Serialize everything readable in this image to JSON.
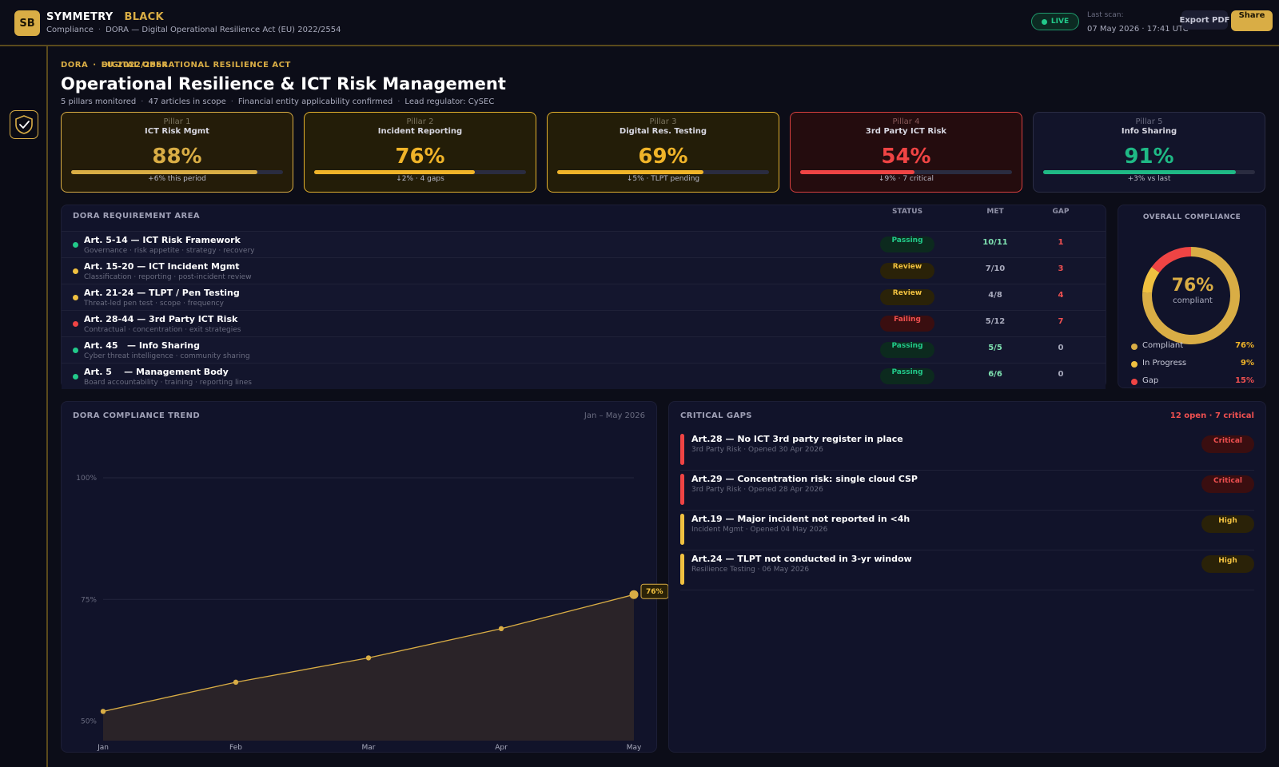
{
  "brand": {
    "initials": "SB",
    "name_primary": "SYMMETRY",
    "name_secondary": "BLACK"
  },
  "breadcrumb": {
    "section": "Compliance",
    "page": "DORA — Digital Operational Resilience Act (EU) 2022/2554"
  },
  "status": {
    "live_label": "LIVE",
    "last_scan_label": "Last scan:",
    "last_scan_value": "07 May 2026  ·  17:41 UTC"
  },
  "actions": {
    "export_label": "Export PDF",
    "share_label": "Share"
  },
  "page": {
    "eyebrow_left": "DORA",
    "eyebrow_right": "DIGITAL OPERATIONAL RESILIENCE ACT",
    "eyebrow_overlay": "EU 2022/2554",
    "title": "Operational Resilience & ICT Risk Management",
    "meta": [
      "5 pillars monitored",
      "47 articles in scope",
      "Financial entity applicability confirmed",
      "Lead regulator: CySEC"
    ]
  },
  "pillars": [
    {
      "number": "Pillar 1",
      "name": "ICT Risk Mgmt",
      "value": "88%",
      "progress": 0.88,
      "delta": "+6% this period",
      "color": "#d9ad45",
      "state": "gold"
    },
    {
      "number": "Pillar 2",
      "name": "Incident Reporting",
      "value": "76%",
      "progress": 0.76,
      "delta": "↓2%  ·  4 gaps",
      "color": "#f0b429",
      "state": "warn"
    },
    {
      "number": "Pillar 3",
      "name": "Digital Res. Testing",
      "value": "69%",
      "progress": 0.69,
      "delta": "↓5%  ·  TLPT pending",
      "color": "#f0b429",
      "state": "warn"
    },
    {
      "number": "Pillar 4",
      "name": "3rd Party ICT Risk",
      "value": "54%",
      "progress": 0.54,
      "delta": "↓9%  ·  7 critical",
      "color": "#ef4444",
      "state": "danger"
    },
    {
      "number": "Pillar 5",
      "name": "Info Sharing",
      "value": "91%",
      "progress": 0.91,
      "delta": "+3% vs last",
      "color": "#1fb985",
      "state": "ok"
    }
  ],
  "requirements": {
    "header": "DORA REQUIREMENT AREA",
    "col_status": "STATUS",
    "col_met": "MET",
    "col_gap": "GAP",
    "rows": [
      {
        "title": "Art. 5-14 — ICT Risk Framework",
        "desc": "Governance · risk appetite · strategy · recovery",
        "status": "Passing",
        "kind": "pass",
        "met": "10/11",
        "gap": "1",
        "dot": "#22c98a"
      },
      {
        "title": "Art. 15-20 — ICT Incident Mgmt",
        "desc": "Classification · reporting · post-incident review",
        "status": "Review",
        "kind": "review",
        "met": "7/10",
        "gap": "3",
        "dot": "#f0c040"
      },
      {
        "title": "Art. 21-24 — TLPT / Pen Testing",
        "desc": "Threat-led pen test · scope · frequency",
        "status": "Review",
        "kind": "review",
        "met": "4/8",
        "gap": "4",
        "dot": "#f0c040"
      },
      {
        "title": "Art. 28-44 — 3rd Party ICT Risk",
        "desc": "Contractual · concentration · exit strategies",
        "status": "Failing",
        "kind": "fail",
        "met": "5/12",
        "gap": "7",
        "dot": "#ef4444"
      },
      {
        "title": "Art. 45   — Info Sharing",
        "desc": "Cyber threat intelligence · community sharing",
        "status": "Passing",
        "kind": "pass",
        "met": "5/5",
        "gap": "0",
        "dot": "#22c98a"
      },
      {
        "title": "Art. 5    — Management Body",
        "desc": "Board accountability · training · reporting lines",
        "status": "Passing",
        "kind": "pass",
        "met": "6/6",
        "gap": "0",
        "dot": "#22c98a"
      }
    ]
  },
  "overall": {
    "header": "OVERALL COMPLIANCE",
    "value": "76%",
    "label": "compliant",
    "legend": [
      {
        "label": "Compliant",
        "value": "76%",
        "pct": 76,
        "color": "#d9ad45"
      },
      {
        "label": "In Progress",
        "value": "9%",
        "pct": 9,
        "color": "#f0c040"
      },
      {
        "label": "Gap",
        "value": "15%",
        "pct": 15,
        "color": "#ef4444"
      }
    ]
  },
  "trend": {
    "header": "DORA COMPLIANCE TREND",
    "range": "Jan – May 2026",
    "end_label": "76%"
  },
  "chart_data": {
    "type": "area",
    "title": "DORA COMPLIANCE TREND",
    "x": [
      "Jan",
      "Feb",
      "Mar",
      "Apr",
      "May"
    ],
    "values": [
      52,
      58,
      63,
      69,
      76
    ],
    "ylim": [
      46,
      110
    ],
    "yticks": [
      50,
      75,
      100
    ],
    "ytick_labels": [
      "50%",
      "75%",
      "100%"
    ],
    "grid": true,
    "color": "#d9ad45"
  },
  "critical_gaps": {
    "header": "CRITICAL GAPS",
    "count": "12 open · 7 critical",
    "items": [
      {
        "title": "Art.28 — No ICT 3rd party register in place",
        "meta": "3rd Party Risk · Opened 30 Apr 2026",
        "severity": "Critical",
        "kind": "crit",
        "color": "#ef4444"
      },
      {
        "title": "Art.29 — Concentration risk: single cloud CSP",
        "meta": "3rd Party Risk · Opened 28 Apr 2026",
        "severity": "Critical",
        "kind": "crit",
        "color": "#ef4444"
      },
      {
        "title": "Art.19 — Major incident not reported in <4h",
        "meta": "Incident Mgmt · Opened 04 May 2026",
        "severity": "High",
        "kind": "high",
        "color": "#f0c040"
      },
      {
        "title": "Art.24 — TLPT not conducted in 3-yr window",
        "meta": "Resilience Testing · 06 May 2026",
        "severity": "High",
        "kind": "high",
        "color": "#f0c040"
      }
    ]
  }
}
